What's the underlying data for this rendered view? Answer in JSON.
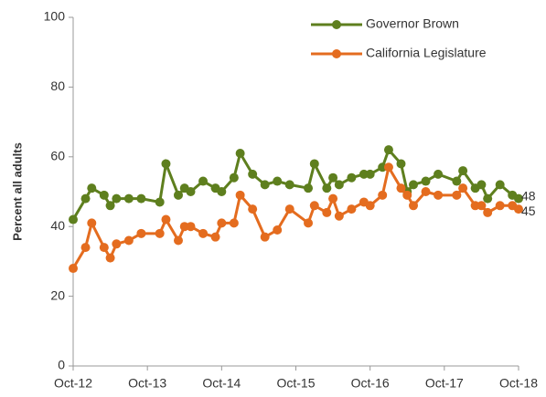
{
  "chart_data": {
    "type": "line",
    "y_label": "Percent all adults",
    "x": [
      "2012-10",
      "2012-12",
      "2013-01",
      "2013-03",
      "2013-04",
      "2013-05",
      "2013-07",
      "2013-09",
      "2013-12",
      "2014-01",
      "2014-03",
      "2014-04",
      "2014-05",
      "2014-07",
      "2014-09",
      "2014-10",
      "2014-12",
      "2015-01",
      "2015-03",
      "2015-05",
      "2015-07",
      "2015-09",
      "2015-12",
      "2016-01",
      "2016-03",
      "2016-04",
      "2016-05",
      "2016-07",
      "2016-09",
      "2016-10",
      "2016-12",
      "2017-01",
      "2017-03",
      "2017-04",
      "2017-05",
      "2017-07",
      "2017-09",
      "2017-12",
      "2018-01",
      "2018-03",
      "2018-04",
      "2018-05",
      "2018-07",
      "2018-09",
      "2018-10"
    ],
    "series": [
      {
        "name": "Governor Brown",
        "color": "#5e7f1e",
        "values": [
          42,
          48,
          51,
          49,
          46,
          48,
          48,
          48,
          47,
          58,
          49,
          51,
          50,
          53,
          51,
          50,
          54,
          61,
          55,
          52,
          53,
          52,
          51,
          58,
          51,
          54,
          52,
          54,
          55,
          55,
          57,
          62,
          58,
          50,
          52,
          53,
          55,
          53,
          56,
          51,
          52,
          48,
          52,
          49,
          48
        ]
      },
      {
        "name": "California Legislature",
        "color": "#e46c1f",
        "values": [
          28,
          34,
          41,
          34,
          31,
          35,
          36,
          38,
          38,
          42,
          36,
          40,
          40,
          38,
          37,
          41,
          41,
          49,
          45,
          37,
          39,
          45,
          41,
          46,
          44,
          48,
          43,
          45,
          47,
          46,
          49,
          57,
          51,
          49,
          46,
          50,
          49,
          49,
          51,
          46,
          46,
          44,
          46,
          46,
          45
        ]
      }
    ],
    "xlim": [
      "2012-10",
      "2018-10"
    ],
    "xticks": [
      {
        "value": "2012-10",
        "label": "Oct-12"
      },
      {
        "value": "2013-10",
        "label": "Oct-13"
      },
      {
        "value": "2014-10",
        "label": "Oct-14"
      },
      {
        "value": "2015-10",
        "label": "Oct-15"
      },
      {
        "value": "2016-10",
        "label": "Oct-16"
      },
      {
        "value": "2017-10",
        "label": "Oct-17"
      },
      {
        "value": "2018-10",
        "label": "Oct-18"
      }
    ],
    "ylim": [
      0,
      100
    ],
    "yticks": [
      0,
      20,
      40,
      60,
      80,
      100
    ],
    "grid": false,
    "legend": "top-right"
  }
}
